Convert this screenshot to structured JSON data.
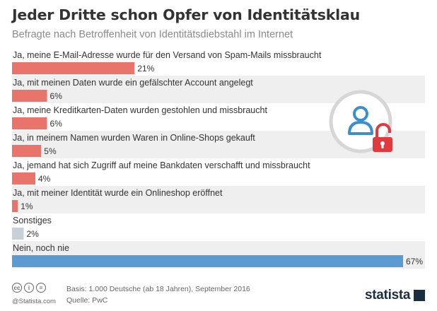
{
  "chart_data": {
    "type": "bar",
    "orientation": "horizontal",
    "title": "Jeder Dritte schon Opfer von Identitätsklau",
    "subtitle": "Befragte nach Betroffenheit von Identitätsdiebstahl im Internet",
    "categories": [
      "Ja, meine E-Mail-Adresse wurde für den Versand von Spam-Mails missbraucht",
      "Ja, mit meinen Daten wurde ein gefälschter Account angelegt",
      "Ja, meine Kreditkarten-Daten wurden gestohlen und missbraucht",
      "Ja, in meinem Namen wurden Waren in Online-Shops gekauft",
      "Ja, jemand hat sich Zugriff auf meine Bankdaten verschafft und missbraucht",
      "Ja, mit meiner Identität wurde ein Onlineshop eröffnet",
      "Sonstiges",
      "Nein, noch nie"
    ],
    "values": [
      21,
      6,
      6,
      5,
      4,
      1,
      2,
      67
    ],
    "value_labels": [
      "21%",
      "6%",
      "6%",
      "5%",
      "4%",
      "1%",
      "2%",
      "67%"
    ],
    "unit": "%",
    "bar_colors": [
      "#e8746b",
      "#e8746b",
      "#e8746b",
      "#e8746b",
      "#e8746b",
      "#e8746b",
      "#c8cfd6",
      "#5b9bd1"
    ],
    "row_band_color": "#efefef",
    "xlim": [
      0,
      67
    ],
    "grid": false,
    "legend": "none"
  },
  "illustration": {
    "icons": [
      "user-icon",
      "open-padlock-icon"
    ],
    "ring_color": "#d6d6d6",
    "user_color": "#3c8fce",
    "lock_color": "#e0393e"
  },
  "footer": {
    "basis": "Basis: 1.000 Deutsche (ab 18 Jahren), September 2016",
    "source": "Quelle: PwC",
    "license_icons": [
      "cc-icon",
      "by-icon",
      "nd-icon"
    ],
    "license_glyphs": [
      "cc",
      "i",
      "="
    ],
    "handle": "@Statista.com",
    "logo": "statista"
  }
}
